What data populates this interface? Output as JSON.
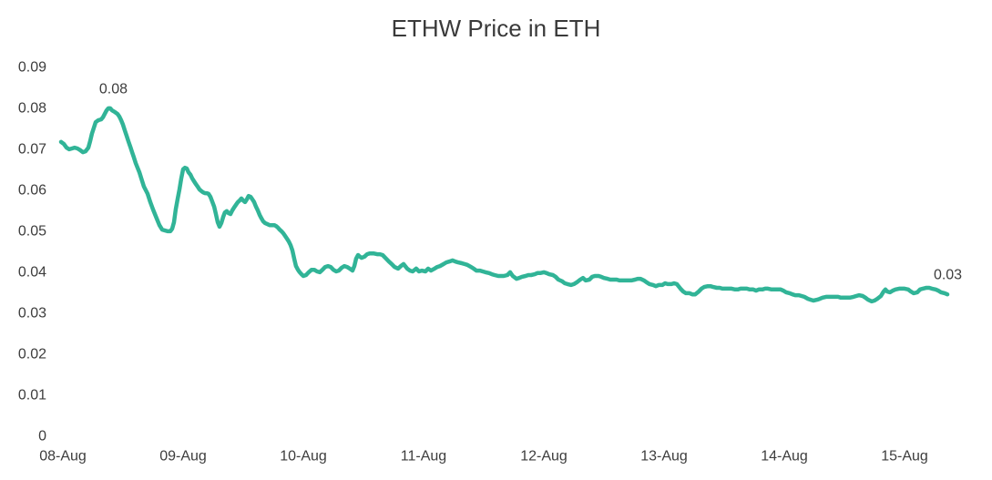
{
  "chart_data": {
    "type": "line",
    "title": "ETHW Price in ETH",
    "grid": false,
    "legend": false,
    "line_color": "#31b497",
    "x_unit": "days since 08-Aug",
    "x_tick_labels": [
      "08-Aug",
      "09-Aug",
      "10-Aug",
      "11-Aug",
      "12-Aug",
      "13-Aug",
      "14-Aug",
      "15-Aug"
    ],
    "y_tick_labels": [
      "0",
      "0.01",
      "0.02",
      "0.03",
      "0.04",
      "0.05",
      "0.06",
      "0.07",
      "0.08",
      "0.09"
    ],
    "ylim": [
      0,
      0.09
    ],
    "annotations": [
      {
        "label": "0.08",
        "day": 0.42,
        "value": 0.0798
      },
      {
        "label": "0.03",
        "day": 7.36,
        "value": 0.0344
      }
    ],
    "points": [
      [
        -0.015,
        0.0716
      ],
      [
        0.008,
        0.0711
      ],
      [
        0.03,
        0.0702
      ],
      [
        0.053,
        0.0698
      ],
      [
        0.076,
        0.07
      ],
      [
        0.098,
        0.0702
      ],
      [
        0.121,
        0.07
      ],
      [
        0.144,
        0.0696
      ],
      [
        0.167,
        0.0691
      ],
      [
        0.189,
        0.0693
      ],
      [
        0.212,
        0.0702
      ],
      [
        0.227,
        0.0718
      ],
      [
        0.242,
        0.0736
      ],
      [
        0.258,
        0.0751
      ],
      [
        0.273,
        0.0764
      ],
      [
        0.295,
        0.0769
      ],
      [
        0.318,
        0.0771
      ],
      [
        0.333,
        0.0776
      ],
      [
        0.348,
        0.0784
      ],
      [
        0.364,
        0.0793
      ],
      [
        0.379,
        0.0798
      ],
      [
        0.394,
        0.0798
      ],
      [
        0.409,
        0.0793
      ],
      [
        0.432,
        0.0789
      ],
      [
        0.455,
        0.0784
      ],
      [
        0.47,
        0.0778
      ],
      [
        0.485,
        0.0769
      ],
      [
        0.5,
        0.0758
      ],
      [
        0.515,
        0.0744
      ],
      [
        0.53,
        0.0731
      ],
      [
        0.545,
        0.0718
      ],
      [
        0.561,
        0.0704
      ],
      [
        0.576,
        0.0691
      ],
      [
        0.591,
        0.0678
      ],
      [
        0.606,
        0.0664
      ],
      [
        0.621,
        0.0653
      ],
      [
        0.636,
        0.0642
      ],
      [
        0.652,
        0.0627
      ],
      [
        0.674,
        0.0607
      ],
      [
        0.705,
        0.0589
      ],
      [
        0.727,
        0.0569
      ],
      [
        0.75,
        0.0551
      ],
      [
        0.78,
        0.0529
      ],
      [
        0.803,
        0.0513
      ],
      [
        0.826,
        0.0502
      ],
      [
        0.848,
        0.05
      ],
      [
        0.871,
        0.0498
      ],
      [
        0.894,
        0.0498
      ],
      [
        0.909,
        0.0504
      ],
      [
        0.924,
        0.052
      ],
      [
        0.939,
        0.0551
      ],
      [
        0.955,
        0.0578
      ],
      [
        0.97,
        0.06
      ],
      [
        0.985,
        0.0627
      ],
      [
        1.0,
        0.0649
      ],
      [
        1.015,
        0.0653
      ],
      [
        1.03,
        0.0651
      ],
      [
        1.045,
        0.0642
      ],
      [
        1.061,
        0.0636
      ],
      [
        1.076,
        0.0627
      ],
      [
        1.091,
        0.062
      ],
      [
        1.106,
        0.0613
      ],
      [
        1.121,
        0.0607
      ],
      [
        1.136,
        0.06
      ],
      [
        1.152,
        0.0596
      ],
      [
        1.167,
        0.0593
      ],
      [
        1.182,
        0.0591
      ],
      [
        1.197,
        0.0591
      ],
      [
        1.212,
        0.0589
      ],
      [
        1.227,
        0.0582
      ],
      [
        1.242,
        0.0571
      ],
      [
        1.258,
        0.0558
      ],
      [
        1.273,
        0.054
      ],
      [
        1.288,
        0.052
      ],
      [
        1.303,
        0.0509
      ],
      [
        1.318,
        0.0518
      ],
      [
        1.333,
        0.0533
      ],
      [
        1.348,
        0.0544
      ],
      [
        1.364,
        0.0547
      ],
      [
        1.379,
        0.0542
      ],
      [
        1.394,
        0.054
      ],
      [
        1.409,
        0.0549
      ],
      [
        1.424,
        0.0556
      ],
      [
        1.439,
        0.0562
      ],
      [
        1.455,
        0.0569
      ],
      [
        1.47,
        0.0573
      ],
      [
        1.485,
        0.0578
      ],
      [
        1.5,
        0.0573
      ],
      [
        1.515,
        0.0569
      ],
      [
        1.53,
        0.0576
      ],
      [
        1.545,
        0.0584
      ],
      [
        1.561,
        0.0582
      ],
      [
        1.576,
        0.0576
      ],
      [
        1.591,
        0.0569
      ],
      [
        1.606,
        0.0558
      ],
      [
        1.621,
        0.0549
      ],
      [
        1.636,
        0.0538
      ],
      [
        1.652,
        0.0529
      ],
      [
        1.667,
        0.0522
      ],
      [
        1.682,
        0.0518
      ],
      [
        1.697,
        0.0516
      ],
      [
        1.72,
        0.0513
      ],
      [
        1.742,
        0.0513
      ],
      [
        1.758,
        0.0513
      ],
      [
        1.773,
        0.0511
      ],
      [
        1.788,
        0.0507
      ],
      [
        1.803,
        0.0502
      ],
      [
        1.818,
        0.0498
      ],
      [
        1.833,
        0.0493
      ],
      [
        1.848,
        0.0487
      ],
      [
        1.864,
        0.048
      ],
      [
        1.879,
        0.0473
      ],
      [
        1.894,
        0.0464
      ],
      [
        1.909,
        0.0451
      ],
      [
        1.924,
        0.0431
      ],
      [
        1.939,
        0.0413
      ],
      [
        1.955,
        0.0404
      ],
      [
        1.97,
        0.0398
      ],
      [
        1.985,
        0.0393
      ],
      [
        2.0,
        0.0389
      ],
      [
        2.023,
        0.0391
      ],
      [
        2.045,
        0.0398
      ],
      [
        2.068,
        0.0404
      ],
      [
        2.091,
        0.0404
      ],
      [
        2.114,
        0.04
      ],
      [
        2.136,
        0.0398
      ],
      [
        2.159,
        0.0404
      ],
      [
        2.182,
        0.0411
      ],
      [
        2.205,
        0.0413
      ],
      [
        2.227,
        0.0411
      ],
      [
        2.25,
        0.0404
      ],
      [
        2.273,
        0.04
      ],
      [
        2.295,
        0.0402
      ],
      [
        2.318,
        0.0409
      ],
      [
        2.341,
        0.0413
      ],
      [
        2.364,
        0.0411
      ],
      [
        2.386,
        0.0407
      ],
      [
        2.409,
        0.0402
      ],
      [
        2.424,
        0.0413
      ],
      [
        2.439,
        0.0431
      ],
      [
        2.455,
        0.044
      ],
      [
        2.47,
        0.0436
      ],
      [
        2.485,
        0.0433
      ],
      [
        2.508,
        0.0436
      ],
      [
        2.53,
        0.0442
      ],
      [
        2.553,
        0.0444
      ],
      [
        2.583,
        0.0444
      ],
      [
        2.614,
        0.0442
      ],
      [
        2.636,
        0.0442
      ],
      [
        2.659,
        0.044
      ],
      [
        2.682,
        0.0433
      ],
      [
        2.712,
        0.0424
      ],
      [
        2.735,
        0.0418
      ],
      [
        2.758,
        0.0411
      ],
      [
        2.788,
        0.0407
      ],
      [
        2.811,
        0.0413
      ],
      [
        2.833,
        0.0418
      ],
      [
        2.864,
        0.0407
      ],
      [
        2.886,
        0.0402
      ],
      [
        2.909,
        0.04
      ],
      [
        2.939,
        0.0407
      ],
      [
        2.962,
        0.04
      ],
      [
        2.985,
        0.0402
      ],
      [
        3.015,
        0.04
      ],
      [
        3.038,
        0.0407
      ],
      [
        3.061,
        0.0402
      ],
      [
        3.091,
        0.0407
      ],
      [
        3.114,
        0.0411
      ],
      [
        3.136,
        0.0413
      ],
      [
        3.167,
        0.0418
      ],
      [
        3.189,
        0.0422
      ],
      [
        3.212,
        0.0424
      ],
      [
        3.242,
        0.0427
      ],
      [
        3.265,
        0.0424
      ],
      [
        3.288,
        0.0422
      ],
      [
        3.318,
        0.042
      ],
      [
        3.341,
        0.0418
      ],
      [
        3.364,
        0.0416
      ],
      [
        3.394,
        0.0411
      ],
      [
        3.417,
        0.0407
      ],
      [
        3.439,
        0.0402
      ],
      [
        3.47,
        0.0402
      ],
      [
        3.492,
        0.04
      ],
      [
        3.515,
        0.0398
      ],
      [
        3.545,
        0.0396
      ],
      [
        3.568,
        0.0393
      ],
      [
        3.591,
        0.0391
      ],
      [
        3.621,
        0.0389
      ],
      [
        3.644,
        0.0389
      ],
      [
        3.667,
        0.0389
      ],
      [
        3.697,
        0.0391
      ],
      [
        3.72,
        0.0398
      ],
      [
        3.742,
        0.0389
      ],
      [
        3.773,
        0.0382
      ],
      [
        3.795,
        0.0384
      ],
      [
        3.818,
        0.0387
      ],
      [
        3.848,
        0.0389
      ],
      [
        3.871,
        0.0391
      ],
      [
        3.894,
        0.0391
      ],
      [
        3.924,
        0.0393
      ],
      [
        3.947,
        0.0396
      ],
      [
        3.97,
        0.0396
      ],
      [
        4.0,
        0.0398
      ],
      [
        4.023,
        0.0396
      ],
      [
        4.045,
        0.0393
      ],
      [
        4.076,
        0.0391
      ],
      [
        4.098,
        0.0387
      ],
      [
        4.121,
        0.038
      ],
      [
        4.152,
        0.0376
      ],
      [
        4.174,
        0.0371
      ],
      [
        4.197,
        0.0369
      ],
      [
        4.227,
        0.0367
      ],
      [
        4.25,
        0.0369
      ],
      [
        4.273,
        0.0373
      ],
      [
        4.303,
        0.038
      ],
      [
        4.326,
        0.0384
      ],
      [
        4.348,
        0.0378
      ],
      [
        4.379,
        0.038
      ],
      [
        4.402,
        0.0387
      ],
      [
        4.424,
        0.0389
      ],
      [
        4.455,
        0.0389
      ],
      [
        4.477,
        0.0387
      ],
      [
        4.5,
        0.0384
      ],
      [
        4.53,
        0.0382
      ],
      [
        4.553,
        0.038
      ],
      [
        4.576,
        0.038
      ],
      [
        4.606,
        0.038
      ],
      [
        4.629,
        0.0378
      ],
      [
        4.652,
        0.0378
      ],
      [
        4.682,
        0.0378
      ],
      [
        4.705,
        0.0378
      ],
      [
        4.727,
        0.0378
      ],
      [
        4.758,
        0.038
      ],
      [
        4.78,
        0.0382
      ],
      [
        4.803,
        0.0382
      ],
      [
        4.833,
        0.0378
      ],
      [
        4.856,
        0.0373
      ],
      [
        4.879,
        0.0369
      ],
      [
        4.909,
        0.0367
      ],
      [
        4.932,
        0.0364
      ],
      [
        4.955,
        0.0367
      ],
      [
        4.985,
        0.0367
      ],
      [
        5.008,
        0.0371
      ],
      [
        5.03,
        0.0369
      ],
      [
        5.061,
        0.0369
      ],
      [
        5.083,
        0.0371
      ],
      [
        5.106,
        0.0369
      ],
      [
        5.136,
        0.0358
      ],
      [
        5.159,
        0.0351
      ],
      [
        5.182,
        0.0347
      ],
      [
        5.212,
        0.0347
      ],
      [
        5.235,
        0.0344
      ],
      [
        5.258,
        0.0344
      ],
      [
        5.288,
        0.0351
      ],
      [
        5.311,
        0.0358
      ],
      [
        5.333,
        0.0362
      ],
      [
        5.364,
        0.0364
      ],
      [
        5.386,
        0.0364
      ],
      [
        5.409,
        0.0362
      ],
      [
        5.439,
        0.036
      ],
      [
        5.462,
        0.036
      ],
      [
        5.485,
        0.0358
      ],
      [
        5.515,
        0.0358
      ],
      [
        5.538,
        0.0358
      ],
      [
        5.561,
        0.0358
      ],
      [
        5.591,
        0.0356
      ],
      [
        5.614,
        0.0356
      ],
      [
        5.636,
        0.0358
      ],
      [
        5.667,
        0.0358
      ],
      [
        5.689,
        0.0358
      ],
      [
        5.712,
        0.0356
      ],
      [
        5.742,
        0.0356
      ],
      [
        5.765,
        0.0353
      ],
      [
        5.788,
        0.0356
      ],
      [
        5.818,
        0.0356
      ],
      [
        5.841,
        0.0358
      ],
      [
        5.864,
        0.0358
      ],
      [
        5.894,
        0.0356
      ],
      [
        5.917,
        0.0356
      ],
      [
        5.939,
        0.0356
      ],
      [
        5.97,
        0.0356
      ],
      [
        5.992,
        0.0353
      ],
      [
        6.015,
        0.0349
      ],
      [
        6.045,
        0.0347
      ],
      [
        6.068,
        0.0344
      ],
      [
        6.091,
        0.0342
      ],
      [
        6.121,
        0.0342
      ],
      [
        6.144,
        0.034
      ],
      [
        6.167,
        0.0338
      ],
      [
        6.197,
        0.0333
      ],
      [
        6.22,
        0.0331
      ],
      [
        6.242,
        0.0329
      ],
      [
        6.273,
        0.0331
      ],
      [
        6.295,
        0.0333
      ],
      [
        6.318,
        0.0336
      ],
      [
        6.348,
        0.0338
      ],
      [
        6.371,
        0.0338
      ],
      [
        6.394,
        0.0338
      ],
      [
        6.424,
        0.0338
      ],
      [
        6.447,
        0.0338
      ],
      [
        6.47,
        0.0336
      ],
      [
        6.5,
        0.0336
      ],
      [
        6.523,
        0.0336
      ],
      [
        6.545,
        0.0336
      ],
      [
        6.576,
        0.0338
      ],
      [
        6.598,
        0.034
      ],
      [
        6.621,
        0.0342
      ],
      [
        6.652,
        0.034
      ],
      [
        6.674,
        0.0336
      ],
      [
        6.697,
        0.0331
      ],
      [
        6.727,
        0.0327
      ],
      [
        6.75,
        0.0329
      ],
      [
        6.773,
        0.0333
      ],
      [
        6.803,
        0.034
      ],
      [
        6.826,
        0.0351
      ],
      [
        6.841,
        0.0356
      ],
      [
        6.856,
        0.0351
      ],
      [
        6.879,
        0.0349
      ],
      [
        6.902,
        0.0353
      ],
      [
        6.924,
        0.0356
      ],
      [
        6.955,
        0.0358
      ],
      [
        6.977,
        0.0358
      ],
      [
        7.0,
        0.0358
      ],
      [
        7.03,
        0.0356
      ],
      [
        7.053,
        0.0351
      ],
      [
        7.076,
        0.0347
      ],
      [
        7.106,
        0.0349
      ],
      [
        7.129,
        0.0356
      ],
      [
        7.152,
        0.0358
      ],
      [
        7.182,
        0.036
      ],
      [
        7.205,
        0.036
      ],
      [
        7.227,
        0.0358
      ],
      [
        7.258,
        0.0356
      ],
      [
        7.28,
        0.0353
      ],
      [
        7.303,
        0.0349
      ],
      [
        7.333,
        0.0347
      ],
      [
        7.356,
        0.0344
      ]
    ]
  }
}
